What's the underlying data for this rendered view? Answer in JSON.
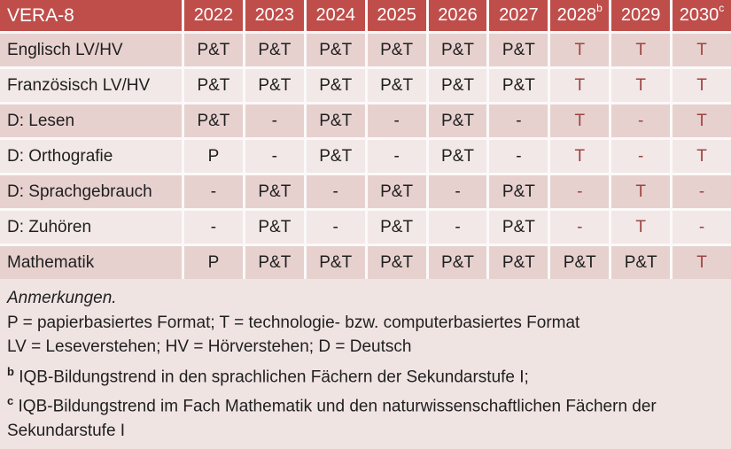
{
  "table": {
    "title": "VERA-8",
    "years": [
      {
        "label": "2022",
        "sup": ""
      },
      {
        "label": "2023",
        "sup": ""
      },
      {
        "label": "2024",
        "sup": ""
      },
      {
        "label": "2025",
        "sup": ""
      },
      {
        "label": "2026",
        "sup": ""
      },
      {
        "label": "2027",
        "sup": ""
      },
      {
        "label": "2028",
        "sup": "b"
      },
      {
        "label": "2029",
        "sup": ""
      },
      {
        "label": "2030",
        "sup": "c"
      }
    ],
    "rows": [
      {
        "label": "Englisch LV/HV",
        "cells": [
          {
            "v": "P&T",
            "red": false
          },
          {
            "v": "P&T",
            "red": false
          },
          {
            "v": "P&T",
            "red": false
          },
          {
            "v": "P&T",
            "red": false
          },
          {
            "v": "P&T",
            "red": false
          },
          {
            "v": "P&T",
            "red": false
          },
          {
            "v": "T",
            "red": true
          },
          {
            "v": "T",
            "red": true
          },
          {
            "v": "T",
            "red": true
          }
        ]
      },
      {
        "label": "Französisch LV/HV",
        "cells": [
          {
            "v": "P&T",
            "red": false
          },
          {
            "v": "P&T",
            "red": false
          },
          {
            "v": "P&T",
            "red": false
          },
          {
            "v": "P&T",
            "red": false
          },
          {
            "v": "P&T",
            "red": false
          },
          {
            "v": "P&T",
            "red": false
          },
          {
            "v": "T",
            "red": true
          },
          {
            "v": "T",
            "red": true
          },
          {
            "v": "T",
            "red": true
          }
        ]
      },
      {
        "label": "D: Lesen",
        "cells": [
          {
            "v": "P&T",
            "red": false
          },
          {
            "v": "-",
            "red": false
          },
          {
            "v": "P&T",
            "red": false
          },
          {
            "v": "-",
            "red": false
          },
          {
            "v": "P&T",
            "red": false
          },
          {
            "v": "-",
            "red": false
          },
          {
            "v": "T",
            "red": true
          },
          {
            "v": "-",
            "red": true
          },
          {
            "v": "T",
            "red": true
          }
        ]
      },
      {
        "label": "D: Orthografie",
        "cells": [
          {
            "v": "P",
            "red": false
          },
          {
            "v": "-",
            "red": false
          },
          {
            "v": "P&T",
            "red": false
          },
          {
            "v": "-",
            "red": false
          },
          {
            "v": "P&T",
            "red": false
          },
          {
            "v": "-",
            "red": false
          },
          {
            "v": "T",
            "red": true
          },
          {
            "v": "-",
            "red": true
          },
          {
            "v": "T",
            "red": true
          }
        ]
      },
      {
        "label": "D: Sprachgebrauch",
        "cells": [
          {
            "v": "-",
            "red": false
          },
          {
            "v": "P&T",
            "red": false
          },
          {
            "v": "-",
            "red": false
          },
          {
            "v": "P&T",
            "red": false
          },
          {
            "v": "-",
            "red": false
          },
          {
            "v": "P&T",
            "red": false
          },
          {
            "v": "-",
            "red": true
          },
          {
            "v": "T",
            "red": true
          },
          {
            "v": "-",
            "red": true
          }
        ]
      },
      {
        "label": "D: Zuhören",
        "cells": [
          {
            "v": "-",
            "red": false
          },
          {
            "v": "P&T",
            "red": false
          },
          {
            "v": "-",
            "red": false
          },
          {
            "v": "P&T",
            "red": false
          },
          {
            "v": "-",
            "red": false
          },
          {
            "v": "P&T",
            "red": false
          },
          {
            "v": "-",
            "red": true
          },
          {
            "v": "T",
            "red": true
          },
          {
            "v": "-",
            "red": true
          }
        ]
      },
      {
        "label": "Mathematik",
        "cells": [
          {
            "v": "P",
            "red": false
          },
          {
            "v": "P&T",
            "red": false
          },
          {
            "v": "P&T",
            "red": false
          },
          {
            "v": "P&T",
            "red": false
          },
          {
            "v": "P&T",
            "red": false
          },
          {
            "v": "P&T",
            "red": false
          },
          {
            "v": "P&T",
            "red": false
          },
          {
            "v": "P&T",
            "red": false
          },
          {
            "v": "T",
            "red": true
          }
        ]
      }
    ]
  },
  "notes": {
    "heading": "Anmerkungen.",
    "formats": "P = papierbasiertes Format; T = technologie- bzw. computerbasiertes Format",
    "abbreviations": "LV = Leseverstehen; HV = Hörverstehen; D = Deutsch",
    "b_sup": "b",
    "b_text": " IQB-Bildungstrend in den sprachlichen Fächern der Sekundarstufe I;",
    "c_sup": "c",
    "c_text": " IQB-Bildungstrend im Fach Mathematik und den naturwissenschaftlichen Fächern der Sekundarstufe I"
  },
  "colors": {
    "header_bg": "#BF4E4B",
    "header_text": "#FFFFFF",
    "row_dark": "#E7D1CF",
    "row_light": "#F2E8E7",
    "notes_bg": "#F0E4E3",
    "grid_line": "#FBF9F9",
    "red_text": "#9C4341",
    "body_text": "#1F1F1F"
  }
}
